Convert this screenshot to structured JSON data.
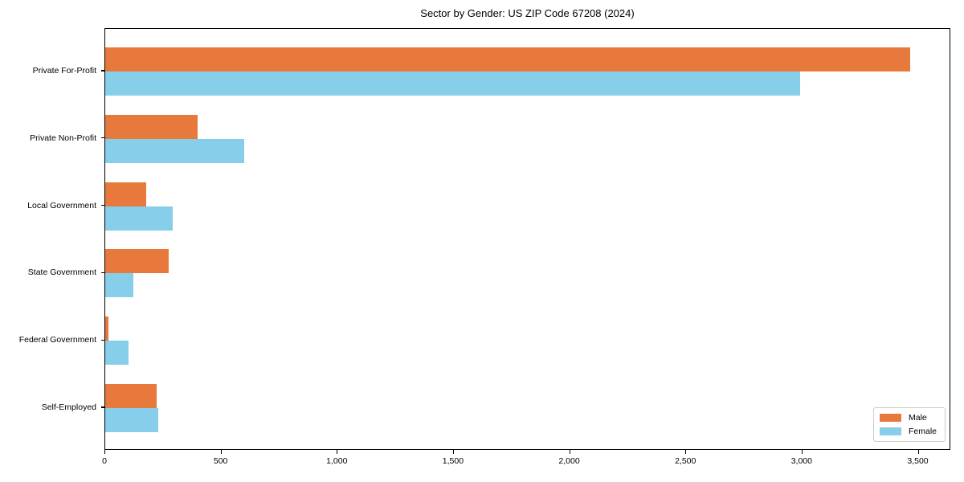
{
  "chart_data": {
    "type": "bar",
    "orientation": "horizontal",
    "title": "Sector by Gender: US ZIP Code 67208 (2024)",
    "categories": [
      "Private For-Profit",
      "Private Non-Profit",
      "Local Government",
      "State Government",
      "Federal Government",
      "Self-Employed"
    ],
    "series": [
      {
        "name": "Male",
        "color": "#e8793c",
        "values": [
          3470,
          400,
          175,
          275,
          13,
          222
        ]
      },
      {
        "name": "Female",
        "color": "#87ceeb",
        "values": [
          2995,
          600,
          290,
          120,
          100,
          228
        ]
      }
    ],
    "xlabel": "",
    "ylabel": "",
    "xlim": [
      0,
      3640
    ],
    "xticks": [
      0,
      500,
      1000,
      1500,
      2000,
      2500,
      3000,
      3500
    ],
    "xtick_labels": [
      "0",
      "500",
      "1,000",
      "1,500",
      "2,000",
      "2,500",
      "3,000",
      "3,500"
    ],
    "legend_position": "lower right",
    "grid": false,
    "colors": {
      "male": "#e8793c",
      "female": "#87ceeb",
      "spine": "#000000",
      "legend_border": "#cccccc"
    }
  }
}
